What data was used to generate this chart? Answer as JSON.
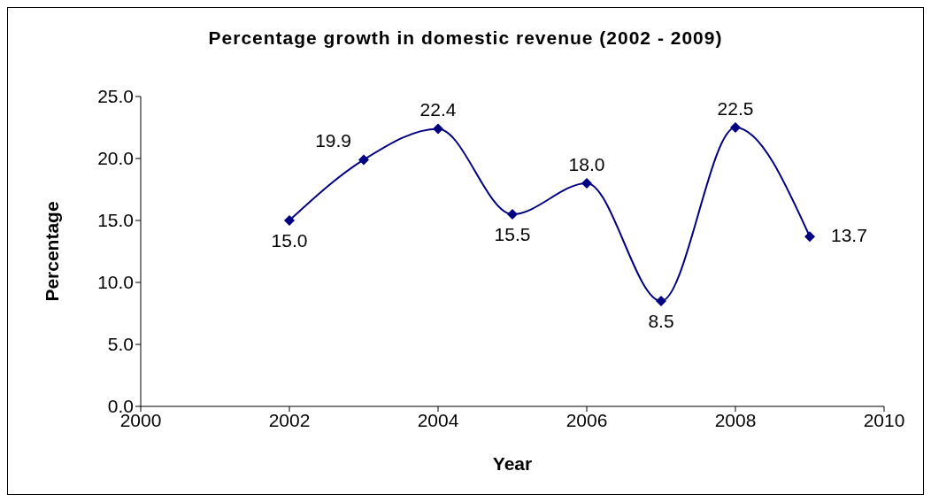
{
  "chart_data": {
    "type": "line",
    "title": "Percentage growth in domestic revenue (2002 - 2009)",
    "xlabel": "Year",
    "ylabel": "Percentage",
    "x": [
      2002,
      2003,
      2004,
      2005,
      2006,
      2007,
      2008,
      2009
    ],
    "series": [
      {
        "color": "#000080",
        "values": [
          15.0,
          19.9,
          22.4,
          15.5,
          18.0,
          8.5,
          22.5,
          13.7
        ],
        "value_labels": [
          "15.0",
          "19.9",
          "22.4",
          "15.5",
          "18.0",
          "8.5",
          "22.5",
          "13.7"
        ]
      }
    ],
    "xlim": [
      2000,
      2010
    ],
    "xticks": [
      2000,
      2002,
      2004,
      2006,
      2008,
      2010
    ],
    "ylim": [
      0,
      25
    ],
    "yticks": [
      {
        "value": 0,
        "label": "0.0"
      },
      {
        "value": 5,
        "label": "5.0"
      },
      {
        "value": 10,
        "label": "10.0"
      },
      {
        "value": 15,
        "label": "15.0"
      },
      {
        "value": 20,
        "label": "20.0"
      },
      {
        "value": 25,
        "label": "25.0"
      }
    ],
    "marker": "diamond",
    "line_style": "solid",
    "grid": false,
    "legend": false
  }
}
